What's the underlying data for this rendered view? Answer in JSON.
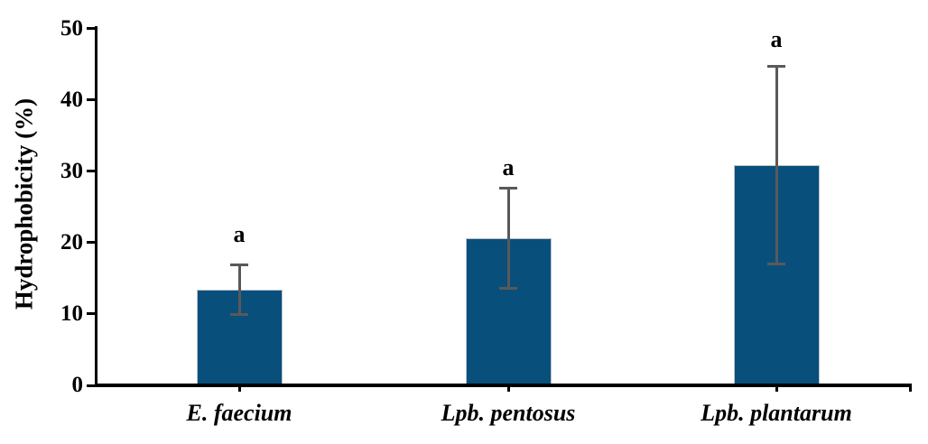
{
  "chart_data": {
    "type": "bar",
    "title": "",
    "ylabel": "Hydrophobicity (%)",
    "xlabel": "",
    "categories": [
      "E. faecium",
      "Lpb. pentosus",
      "Lpb. plantarum"
    ],
    "values": [
      13.4,
      20.6,
      30.9
    ],
    "error_bars": [
      3.6,
      7.1,
      13.9
    ],
    "point_labels": [
      "a",
      "a",
      "a"
    ],
    "ylim": [
      0,
      50
    ],
    "yticks": [
      0,
      10,
      20,
      30,
      40,
      50
    ],
    "grid": false,
    "legend": "none",
    "bar_color": "#084f7c",
    "bar_edge_color": "#bac3cd",
    "error_bar_color": "#595959",
    "axis_color": "#000000",
    "text_color": "#000000"
  }
}
